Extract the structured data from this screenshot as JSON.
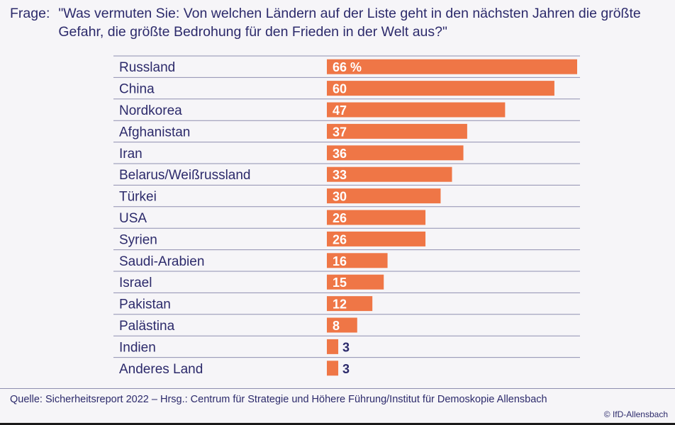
{
  "question": {
    "label": "Frage:",
    "text": "\"Was vermuten Sie: Von welchen Ländern auf der Liste geht in den nächsten Jahren die größte Gefahr, die größte Bedrohung für den Frieden in der Welt aus?\""
  },
  "chart_data": {
    "type": "bar",
    "orientation": "horizontal",
    "categories": [
      "Russland",
      "China",
      "Nordkorea",
      "Afghanistan",
      "Iran",
      "Belarus/Weißrussland",
      "Türkei",
      "USA",
      "Syrien",
      "Saudi-Arabien",
      "Israel",
      "Pakistan",
      "Palästina",
      "Indien",
      "Anderes Land"
    ],
    "values": [
      66,
      60,
      47,
      37,
      36,
      33,
      30,
      26,
      26,
      16,
      15,
      12,
      8,
      3,
      3
    ],
    "value_labels": [
      "66 %",
      "60",
      "47",
      "37",
      "36",
      "33",
      "30",
      "26",
      "26",
      "16",
      "15",
      "12",
      "8",
      "3",
      "3"
    ],
    "unit": "%",
    "xlim": [
      0,
      66
    ],
    "bar_color": "#ef7646",
    "label_color": "#2c2a6b"
  },
  "footer": {
    "source": "Quelle: Sicherheitsreport 2022 – Hrsg.: Centrum für Strategie und Höhere Führung/Institut für Demoskopie Allensbach",
    "copyright": "© IfD-Allensbach"
  }
}
